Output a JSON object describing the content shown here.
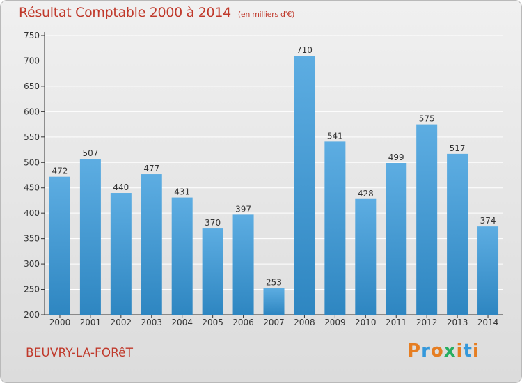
{
  "header": {
    "title": "Résultat Comptable 2000 à 2014",
    "subtitle": "(en milliers d'€)"
  },
  "footer": {
    "commune": "BEUVRY-LA-FORêT",
    "logo_text": "Proxiti"
  },
  "colors": {
    "title": "#c0392b",
    "bar_top": "#5dade2",
    "bar_bottom": "#2e86c1",
    "grid": "#ffffff",
    "logo_letters": [
      "#e67e22",
      "#3498db",
      "#e67e22",
      "#27ae60",
      "#e67e22",
      "#3498db",
      "#e67e22"
    ]
  },
  "chart_data": {
    "type": "bar",
    "categories": [
      "2000",
      "2001",
      "2002",
      "2003",
      "2004",
      "2005",
      "2006",
      "2007",
      "2008",
      "2009",
      "2010",
      "2011",
      "2012",
      "2013",
      "2014"
    ],
    "values": [
      472,
      507,
      440,
      477,
      431,
      370,
      397,
      253,
      710,
      541,
      428,
      499,
      575,
      517,
      374
    ],
    "ylim": [
      200,
      750
    ],
    "yticks": [
      200,
      250,
      300,
      350,
      400,
      450,
      500,
      550,
      600,
      650,
      700,
      750
    ],
    "grid": true
  }
}
